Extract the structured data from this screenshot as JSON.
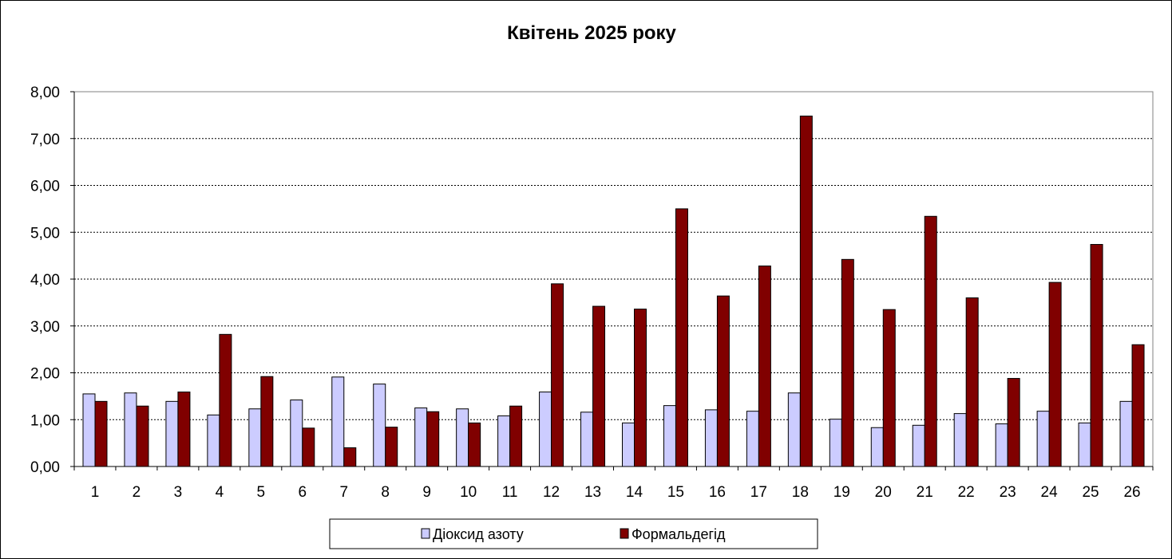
{
  "chart_data": {
    "type": "bar",
    "title": "Квітень 2025 року",
    "xlabel": "",
    "ylabel": "",
    "ylim": [
      0,
      8
    ],
    "yticks": [
      "0,00",
      "1,00",
      "2,00",
      "3,00",
      "4,00",
      "5,00",
      "6,00",
      "7,00",
      "8,00"
    ],
    "ytick_values": [
      0,
      1,
      2,
      3,
      4,
      5,
      6,
      7,
      8
    ],
    "grid": true,
    "legend_position": "bottom",
    "categories": [
      "1",
      "2",
      "3",
      "4",
      "5",
      "6",
      "7",
      "8",
      "9",
      "10",
      "11",
      "12",
      "13",
      "14",
      "15",
      "16",
      "17",
      "18",
      "19",
      "20",
      "21",
      "22",
      "23",
      "24",
      "25",
      "26"
    ],
    "series": [
      {
        "name": "Діоксид азоту",
        "color": "#ccccff",
        "values": [
          1.55,
          1.57,
          1.39,
          1.1,
          1.23,
          1.42,
          1.91,
          1.76,
          1.25,
          1.23,
          1.08,
          1.59,
          1.16,
          0.93,
          1.3,
          1.21,
          1.18,
          1.57,
          1.01,
          0.83,
          0.88,
          1.13,
          0.91,
          1.18,
          0.93,
          1.39
        ]
      },
      {
        "name": "Формальдегід",
        "color": "#800000",
        "values": [
          1.39,
          1.29,
          1.59,
          2.82,
          1.92,
          0.82,
          0.4,
          0.84,
          1.17,
          0.93,
          1.29,
          3.9,
          3.42,
          3.36,
          5.5,
          3.64,
          4.28,
          7.48,
          4.42,
          3.35,
          5.34,
          3.6,
          1.88,
          3.93,
          4.74,
          2.6
        ]
      }
    ]
  }
}
